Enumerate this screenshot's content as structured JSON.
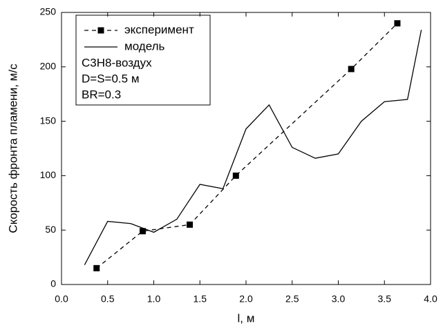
{
  "chart_data": {
    "type": "line",
    "x_label": "l, м",
    "y_label": "Скорость фронта пламени, м/с",
    "xlim": [
      0,
      4
    ],
    "ylim": [
      0,
      250
    ],
    "xticks": [
      {
        "value": 0,
        "label": "0.0"
      },
      0.5,
      {
        "value": 1,
        "label": "1.0"
      },
      1.5,
      {
        "value": 2,
        "label": "2.0"
      },
      2.5,
      {
        "value": 3,
        "label": "3.0"
      },
      3.5,
      {
        "value": 4,
        "label": "4.0"
      }
    ],
    "yticks": [
      0,
      50,
      100,
      150,
      200,
      250
    ],
    "legend_position": "upper left",
    "annotations": [
      "C3H8-воздух",
      "D=S=0.5 м",
      "BR=0.3"
    ],
    "series": [
      {
        "name": "эксперимент",
        "color": "#000000",
        "style": "dashed",
        "marker": "square",
        "x": [
          0.38,
          0.88,
          1.39,
          1.89,
          3.14,
          3.64
        ],
        "values": [
          15,
          49,
          55,
          100,
          198,
          240
        ]
      },
      {
        "name": "модель",
        "color": "#000000",
        "style": "solid",
        "x": [
          0.25,
          0.5,
          0.75,
          1.0,
          1.25,
          1.5,
          1.75,
          2.0,
          2.25,
          2.5,
          2.75,
          3.0,
          3.25,
          3.5,
          3.75,
          3.9
        ],
        "values": [
          18,
          58,
          56,
          48,
          60,
          92,
          88,
          143,
          165,
          126,
          116,
          120,
          150,
          168,
          170,
          234
        ]
      }
    ]
  }
}
